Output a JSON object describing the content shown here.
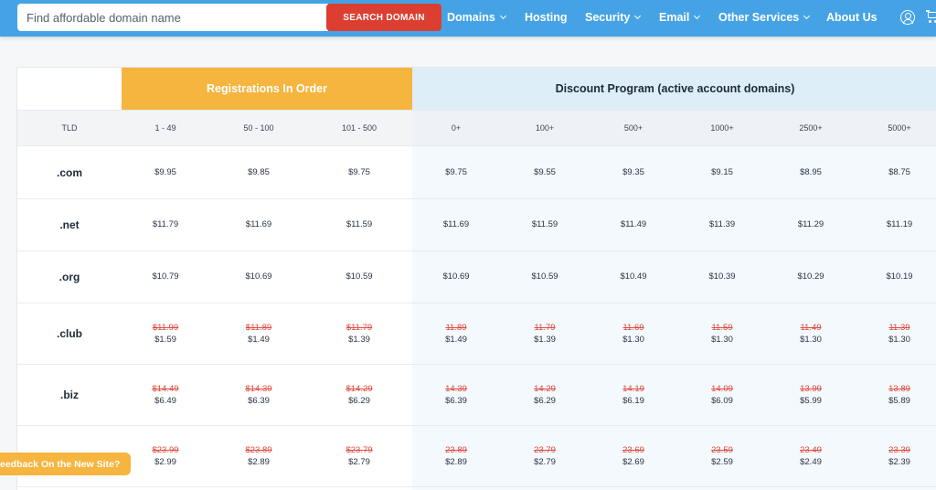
{
  "search": {
    "placeholder": "Find affordable domain name",
    "button_label": "SEARCH DOMAIN"
  },
  "nav": {
    "items": [
      {
        "label": "Domains",
        "has_dropdown": true
      },
      {
        "label": "Hosting",
        "has_dropdown": false
      },
      {
        "label": "Security",
        "has_dropdown": true
      },
      {
        "label": "Email",
        "has_dropdown": true
      },
      {
        "label": "Other Services",
        "has_dropdown": true
      },
      {
        "label": "About Us",
        "has_dropdown": false
      }
    ],
    "icons": [
      "user-icon",
      "cart-icon"
    ]
  },
  "table": {
    "group_headers": {
      "registrations": "Registrations In Order",
      "discount": "Discount Program (active account domains)"
    },
    "columns": [
      "TLD",
      "1 - 49",
      "50 - 100",
      "101 - 500",
      "0+",
      "100+",
      "500+",
      "1000+",
      "2500+",
      "5000+"
    ],
    "rows": [
      {
        "tld": ".com",
        "prices": [
          {
            "new": "$9.95"
          },
          {
            "new": "$9.85"
          },
          {
            "new": "$9.75"
          },
          {
            "new": "$9.75"
          },
          {
            "new": "$9.55"
          },
          {
            "new": "$9.35"
          },
          {
            "new": "$9.15"
          },
          {
            "new": "$8.95"
          },
          {
            "new": "$8.75"
          }
        ]
      },
      {
        "tld": ".net",
        "prices": [
          {
            "new": "$11.79"
          },
          {
            "new": "$11.69"
          },
          {
            "new": "$11.59"
          },
          {
            "new": "$11.69"
          },
          {
            "new": "$11.59"
          },
          {
            "new": "$11.49"
          },
          {
            "new": "$11.39"
          },
          {
            "new": "$11.29"
          },
          {
            "new": "$11.19"
          }
        ]
      },
      {
        "tld": ".org",
        "prices": [
          {
            "new": "$10.79"
          },
          {
            "new": "$10.69"
          },
          {
            "new": "$10.59"
          },
          {
            "new": "$10.69"
          },
          {
            "new": "$10.59"
          },
          {
            "new": "$10.49"
          },
          {
            "new": "$10.39"
          },
          {
            "new": "$10.29"
          },
          {
            "new": "$10.19"
          }
        ]
      },
      {
        "tld": ".club",
        "prices": [
          {
            "old": "$11.99",
            "new": "$1.59"
          },
          {
            "old": "$11.89",
            "new": "$1.49"
          },
          {
            "old": "$11.79",
            "new": "$1.39"
          },
          {
            "old": "11.89",
            "new": "$1.49"
          },
          {
            "old": "11.79",
            "new": "$1.39"
          },
          {
            "old": "11.69",
            "new": "$1.30"
          },
          {
            "old": "11.59",
            "new": "$1.30"
          },
          {
            "old": "11.49",
            "new": "$1.30"
          },
          {
            "old": "11.39",
            "new": "$1.30"
          }
        ]
      },
      {
        "tld": ".biz",
        "prices": [
          {
            "old": "$14.49",
            "new": "$6.49"
          },
          {
            "old": "$14.39",
            "new": "$6.39"
          },
          {
            "old": "$14.29",
            "new": "$6.29"
          },
          {
            "old": "14.39",
            "new": "$6.39"
          },
          {
            "old": "14.29",
            "new": "$6.29"
          },
          {
            "old": "14.19",
            "new": "$6.19"
          },
          {
            "old": "14.09",
            "new": "$6.09"
          },
          {
            "old": "13.99",
            "new": "$5.99"
          },
          {
            "old": "13.89",
            "new": "$5.89"
          }
        ]
      },
      {
        "tld": "",
        "prices": [
          {
            "old": "$23.99",
            "new": "$2.99"
          },
          {
            "old": "$23.89",
            "new": "$2.89"
          },
          {
            "old": "$23.79",
            "new": "$2.79"
          },
          {
            "old": "23.89",
            "new": "$2.89"
          },
          {
            "old": "23.79",
            "new": "$2.79"
          },
          {
            "old": "23.69",
            "new": "$2.69"
          },
          {
            "old": "23.59",
            "new": "$2.59"
          },
          {
            "old": "23.49",
            "new": "$2.49"
          },
          {
            "old": "23.39",
            "new": "$2.39"
          }
        ]
      }
    ]
  },
  "feedback": {
    "label": "eedback On the New Site?"
  },
  "colors": {
    "topbar": "#45a3e5",
    "search_button": "#dc3f32",
    "registrations_header": "#f5b53f",
    "discount_header": "#deeef8",
    "strike_price": "#e0493c"
  }
}
